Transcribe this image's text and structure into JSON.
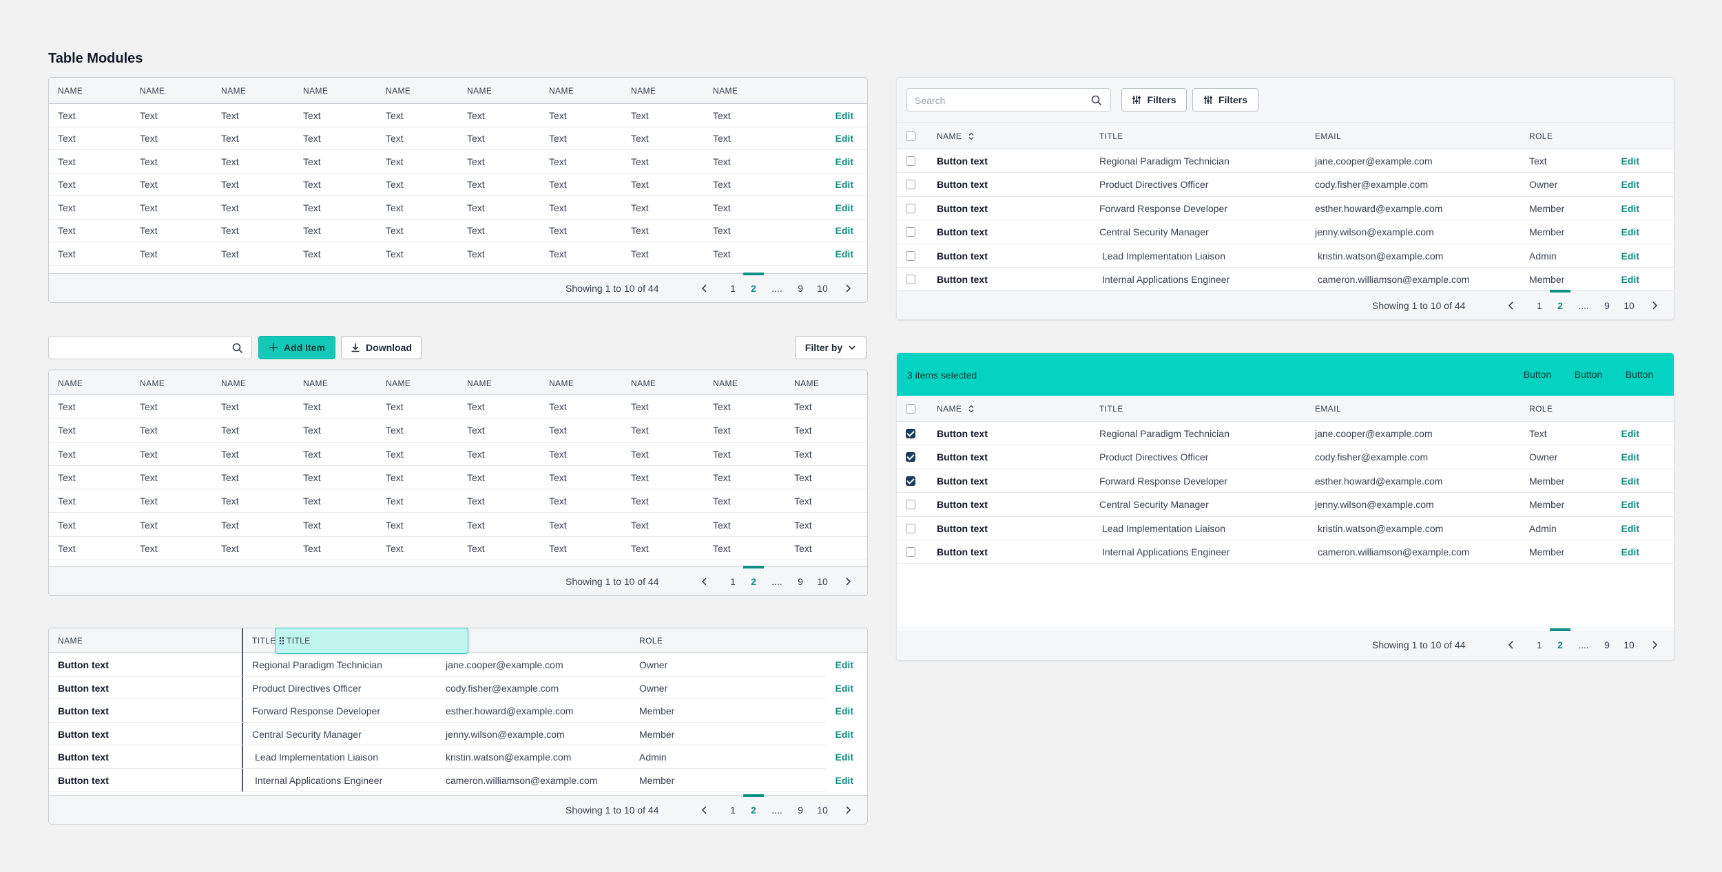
{
  "page_title": "Table Modules",
  "colors": {
    "accent": "#0f8f83",
    "selection_bar": "#04d3c2",
    "primary_button": "#14c8b7"
  },
  "table1": {
    "headers": [
      "NAME",
      "NAME",
      "NAME",
      "NAME",
      "NAME",
      "NAME",
      "NAME",
      "NAME",
      "NAME"
    ],
    "cell_text": "Text",
    "edit_label": "Edit",
    "row_count": 7,
    "showing": "Showing 1 to 10 of 44",
    "pages": [
      "1",
      "2",
      "....",
      "9",
      "10"
    ]
  },
  "toolbar": {
    "search_placeholder": "",
    "add_label": "Add Item",
    "download_label": "Download",
    "filter_label": "Filter by"
  },
  "table2": {
    "headers": [
      "NAME",
      "NAME",
      "NAME",
      "NAME",
      "NAME",
      "NAME",
      "NAME",
      "NAME",
      "NAME",
      "NAME"
    ],
    "cell_text": "Text",
    "row_count": 7,
    "showing": "Showing 1 to 10 of 44",
    "pages": [
      "1",
      "2",
      "....",
      "9",
      "10"
    ]
  },
  "table3": {
    "headers": {
      "name": "NAME",
      "title": "TITLE",
      "role": "ROLE"
    },
    "drag_chip_label": "TITLE",
    "rows": [
      {
        "name": "Button text",
        "title": "Regional Paradigm Technician",
        "email": "jane.cooper@example.com",
        "role": "Owner"
      },
      {
        "name": "Button text",
        "title": "Product Directives Officer",
        "email": "cody.fisher@example.com",
        "role": "Owner"
      },
      {
        "name": "Button text",
        "title": "Forward Response Developer",
        "email": "esther.howard@example.com",
        "role": "Member"
      },
      {
        "name": "Button text",
        "title": "Central Security Manager",
        "email": "jenny.wilson@example.com",
        "role": "Member"
      },
      {
        "name": "Button text",
        "title": "Lead Implementation Liaison",
        "email": "kristin.watson@example.com",
        "role": "Admin"
      },
      {
        "name": "Button text",
        "title": "Internal Applications Engineer",
        "email": "cameron.williamson@example.com",
        "role": "Member"
      }
    ],
    "edit_label": "Edit",
    "showing": "Showing 1 to 10 of 44",
    "pages": [
      "1",
      "2",
      "....",
      "9",
      "10"
    ]
  },
  "table4": {
    "search_placeholder": "Search",
    "filters_label": "Filters",
    "headers": {
      "name": "NAME",
      "title": "TITLE",
      "email": "EMAIL",
      "role": "ROLE"
    },
    "rows": [
      {
        "name": "Button text",
        "title": "Regional Paradigm Technician",
        "email": "jane.cooper@example.com",
        "role": "Text"
      },
      {
        "name": "Button text",
        "title": "Product Directives Officer",
        "email": "cody.fisher@example.com",
        "role": "Owner"
      },
      {
        "name": "Button text",
        "title": "Forward Response Developer",
        "email": "esther.howard@example.com",
        "role": "Member"
      },
      {
        "name": "Button text",
        "title": "Central Security Manager",
        "email": "jenny.wilson@example.com",
        "role": "Member"
      },
      {
        "name": "Button text",
        "title": "Lead Implementation Liaison",
        "email": "kristin.watson@example.com",
        "role": "Admin"
      },
      {
        "name": "Button text",
        "title": "Internal Applications Engineer",
        "email": "cameron.williamson@example.com",
        "role": "Member"
      }
    ],
    "edit_label": "Edit",
    "showing": "Showing 1 to 10 of 44",
    "pages": [
      "1",
      "2",
      "....",
      "9",
      "10"
    ]
  },
  "table5": {
    "selected_text": "3 items selected",
    "actions": [
      "Button",
      "Button",
      "Button"
    ],
    "headers": {
      "name": "NAME",
      "title": "TITLE",
      "email": "EMAIL",
      "role": "ROLE"
    },
    "rows": [
      {
        "checked": true,
        "name": "Button text",
        "title": "Regional Paradigm Technician",
        "email": "jane.cooper@example.com",
        "role": "Text"
      },
      {
        "checked": true,
        "name": "Button text",
        "title": "Product Directives Officer",
        "email": "cody.fisher@example.com",
        "role": "Owner"
      },
      {
        "checked": true,
        "name": "Button text",
        "title": "Forward Response Developer",
        "email": "esther.howard@example.com",
        "role": "Member"
      },
      {
        "checked": false,
        "name": "Button text",
        "title": "Central Security Manager",
        "email": "jenny.wilson@example.com",
        "role": "Member"
      },
      {
        "checked": false,
        "name": "Button text",
        "title": "Lead Implementation Liaison",
        "email": "kristin.watson@example.com",
        "role": "Admin"
      },
      {
        "checked": false,
        "name": "Button text",
        "title": "Internal Applications Engineer",
        "email": "cameron.williamson@example.com",
        "role": "Member"
      }
    ],
    "edit_label": "Edit",
    "showing": "Showing 1 to 10 of 44",
    "pages": [
      "1",
      "2",
      "....",
      "9",
      "10"
    ]
  }
}
